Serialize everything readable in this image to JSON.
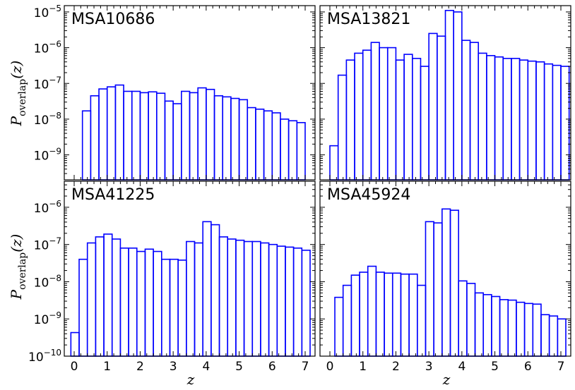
{
  "chart_data": [
    {
      "type": "bar",
      "title": "MSA10686",
      "ylabel": "P_overlap(z)",
      "xlabel": "",
      "yscale": "log",
      "ylim": [
        2e-10,
        1.5e-05
      ],
      "xlim": [
        -0.3,
        7.3
      ],
      "bin_width": 0.25,
      "x_bin_starts": [
        0.0,
        0.25,
        0.5,
        0.75,
        1.0,
        1.25,
        1.5,
        1.75,
        2.0,
        2.25,
        2.5,
        2.75,
        3.0,
        3.25,
        3.5,
        3.75,
        4.0,
        4.25,
        4.5,
        4.75,
        5.0,
        5.25,
        5.5,
        5.75,
        6.0,
        6.25,
        6.5,
        6.75,
        7.0
      ],
      "values": [
        null,
        1.7e-08,
        4.5e-08,
        7e-08,
        8e-08,
        9e-08,
        6e-08,
        6e-08,
        5.5e-08,
        5.8e-08,
        5.3e-08,
        3.2e-08,
        2.7e-08,
        6e-08,
        5.5e-08,
        7.5e-08,
        6.8e-08,
        4.5e-08,
        4.2e-08,
        3.8e-08,
        3.5e-08,
        2.1e-08,
        1.9e-08,
        1.7e-08,
        1.5e-08,
        1e-08,
        9e-09,
        8e-09,
        null
      ],
      "yticks": [
        "10^{-9}",
        "10^{-8}",
        "10^{-7}",
        "10^{-6}",
        "10^{-5}"
      ],
      "ytick_values": [
        1e-09,
        1e-08,
        1e-07,
        1e-06,
        1e-05
      ],
      "xticks": []
    },
    {
      "type": "bar",
      "title": "MSA13821",
      "ylabel": "",
      "xlabel": "",
      "yscale": "log",
      "ylim": [
        2e-10,
        1.5e-05
      ],
      "xlim": [
        -0.3,
        7.3
      ],
      "bin_width": 0.25,
      "x_bin_starts": [
        0.0,
        0.25,
        0.5,
        0.75,
        1.0,
        1.25,
        1.5,
        1.75,
        2.0,
        2.25,
        2.5,
        2.75,
        3.0,
        3.25,
        3.5,
        3.75,
        4.0,
        4.25,
        4.5,
        4.75,
        5.0,
        5.25,
        5.5,
        5.75,
        6.0,
        6.25,
        6.5,
        6.75,
        7.0
      ],
      "values": [
        1.8e-09,
        1.7e-07,
        4.5e-07,
        7e-07,
        8.5e-07,
        1.4e-06,
        1e-06,
        1e-06,
        4.5e-07,
        6.5e-07,
        5e-07,
        3e-07,
        2.5e-06,
        2.1e-06,
        1.1e-05,
        1e-05,
        1.6e-06,
        1.4e-06,
        7e-07,
        6e-07,
        5.5e-07,
        5e-07,
        5e-07,
        4.5e-07,
        4.2e-07,
        4e-07,
        3.5e-07,
        3.2e-07,
        3e-07
      ],
      "yticks": [],
      "xticks": []
    },
    {
      "type": "bar",
      "title": "MSA41225",
      "ylabel": "P_overlap(z)",
      "xlabel": "z",
      "yscale": "log",
      "ylim": [
        1e-10,
        5e-06
      ],
      "xlim": [
        -0.3,
        7.3
      ],
      "bin_width": 0.25,
      "x_bin_starts": [
        -0.1,
        0.15,
        0.4,
        0.65,
        0.9,
        1.15,
        1.4,
        1.65,
        1.9,
        2.15,
        2.4,
        2.65,
        2.9,
        3.15,
        3.4,
        3.65,
        3.9,
        4.15,
        4.4,
        4.65,
        4.9,
        5.15,
        5.4,
        5.65,
        5.9,
        6.15,
        6.4,
        6.65,
        6.9
      ],
      "values": [
        4.3e-10,
        4e-08,
        1.1e-07,
        1.6e-07,
        1.9e-07,
        1.4e-07,
        8e-08,
        8e-08,
        6.5e-08,
        7.5e-08,
        6.5e-08,
        4e-08,
        4e-08,
        3.8e-08,
        1.2e-07,
        1.1e-07,
        4.1e-07,
        3.4e-07,
        1.6e-07,
        1.4e-07,
        1.3e-07,
        1.2e-07,
        1.2e-07,
        1.1e-07,
        1e-07,
        9e-08,
        8.5e-08,
        8e-08,
        7e-08
      ],
      "yticks": [
        "10^{-10}",
        "10^{-9}",
        "10^{-8}",
        "10^{-7}",
        "10^{-6}"
      ],
      "ytick_values": [
        1e-10,
        1e-09,
        1e-08,
        1e-07,
        1e-06
      ],
      "xticks": [
        "0",
        "1",
        "2",
        "3",
        "4",
        "5",
        "6",
        "7"
      ],
      "xtick_values": [
        0,
        1,
        2,
        3,
        4,
        5,
        6,
        7
      ]
    },
    {
      "type": "bar",
      "title": "MSA45924",
      "ylabel": "",
      "xlabel": "z",
      "yscale": "log",
      "ylim": [
        1e-10,
        5e-06
      ],
      "xlim": [
        -0.3,
        7.3
      ],
      "bin_width": 0.25,
      "x_bin_starts": [
        -0.1,
        0.15,
        0.4,
        0.65,
        0.9,
        1.15,
        1.4,
        1.65,
        1.9,
        2.15,
        2.4,
        2.65,
        2.9,
        3.15,
        3.4,
        3.65,
        3.9,
        4.15,
        4.4,
        4.65,
        4.9,
        5.15,
        5.4,
        5.65,
        5.9,
        6.15,
        6.4,
        6.65,
        6.9
      ],
      "values": [
        null,
        3.8e-09,
        8e-09,
        1.5e-08,
        1.8e-08,
        2.6e-08,
        1.8e-08,
        1.7e-08,
        1.7e-08,
        1.6e-08,
        1.6e-08,
        8e-09,
        4.1e-07,
        3.8e-07,
        9e-07,
        8.3e-07,
        1.05e-08,
        9e-09,
        5e-09,
        4.5e-09,
        4e-09,
        3.3e-09,
        3.2e-09,
        2.8e-09,
        2.6e-09,
        2.5e-09,
        1.3e-09,
        1.2e-09,
        1e-09
      ],
      "yticks": [],
      "xticks": [
        "0",
        "1",
        "2",
        "3",
        "4",
        "5",
        "6",
        "7"
      ],
      "xtick_values": [
        0,
        1,
        2,
        3,
        4,
        5,
        6,
        7
      ]
    }
  ],
  "colors": {
    "bar_stroke": "#0000ff",
    "axes": "#000000"
  }
}
